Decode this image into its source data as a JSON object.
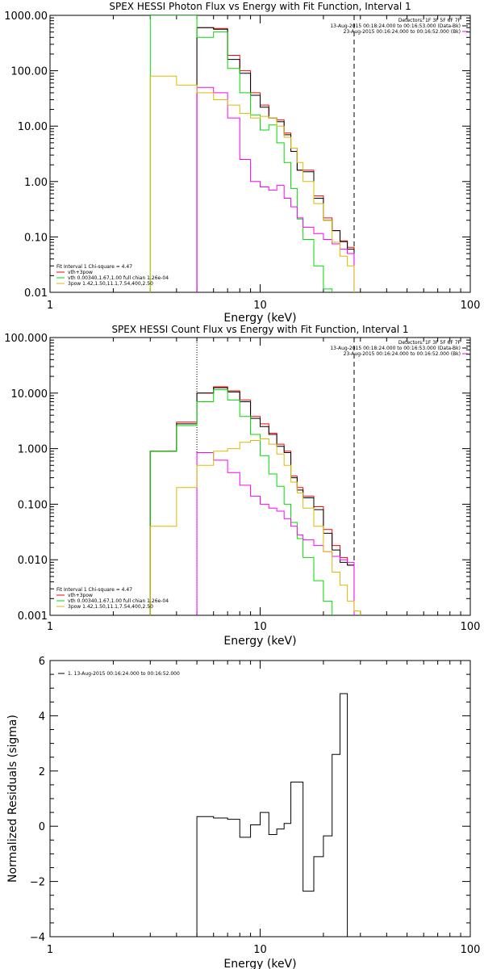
{
  "chart_data": [
    {
      "type": "line",
      "title": "SPEX HESSI Photon Flux vs Energy with Fit Function, Interval 1",
      "xlabel": "Energy (keV)",
      "ylabel": "",
      "x_scale": "log",
      "y_scale": "log",
      "xlim": [
        1,
        100
      ],
      "ylim": [
        0.01,
        1000
      ],
      "x_ticks": [
        "1",
        "10",
        "100"
      ],
      "y_ticks": [
        "0.01",
        "0.10",
        "1.00",
        "10.00",
        "100.00",
        "1000.00"
      ],
      "header_lines": [
        "Detectors: 1F 3F 5F 6F 7F",
        "13-Aug-2015 00:18:24.000 to 00:16:53.000 (Data-Bk)",
        "23-Aug-2015 00:16:24.000 to 00:16:52.000 (Bk)"
      ],
      "legend_title": "Fit Interval 1    Chi-square = 4.47",
      "legend": [
        "vth+3pow",
        "vth 0.00340,1.67,1.00  full chian 1.26e-04",
        "3pow 1.42,1.50,11.1,7.54,400,2.50"
      ],
      "vlines_dashed": [
        28
      ],
      "vlines_dotted": [],
      "edges": [
        3.0,
        4.0,
        5.0,
        6.0,
        7.0,
        8.0,
        9.0,
        10.0,
        11.0,
        12.0,
        13.0,
        14.0,
        15.0,
        16.0,
        18.0,
        20.0,
        22.0,
        24.0,
        26.0,
        28.0
      ],
      "series": [
        {
          "color": "#ff0000",
          "values": [
            null,
            null,
            600,
            580,
            190,
            100,
            40,
            24,
            14,
            13,
            7.5,
            4,
            1.6,
            1.6,
            0.55,
            0.22,
            0.13,
            0.085,
            0.065
          ]
        },
        {
          "color": "#000000",
          "values": [
            null,
            null,
            600,
            560,
            160,
            90,
            36,
            22,
            14,
            12,
            7,
            3.5,
            1.6,
            1.5,
            0.5,
            0.2,
            0.13,
            0.082,
            0.06
          ]
        },
        {
          "color": "#00dd00",
          "values": [
            1000,
            1000,
            400,
            500,
            110,
            40,
            16,
            8.5,
            10.5,
            5,
            2.2,
            0.75,
            0.21,
            0.09,
            0.03,
            0.0115,
            null,
            null,
            null
          ]
        },
        {
          "color": "#ff00ff",
          "values": [
            null,
            null,
            50,
            40,
            14,
            2.5,
            1,
            0.8,
            0.7,
            0.85,
            0.5,
            0.35,
            0.22,
            0.15,
            0.115,
            0.09,
            0.075,
            0.06,
            0.05
          ]
        },
        {
          "color": "#ddbb00",
          "values": [
            80,
            55,
            40,
            30,
            24,
            17,
            14,
            15,
            14,
            10,
            6.3,
            4,
            2.2,
            1,
            0.4,
            0.2,
            0.08,
            0.045,
            0.03
          ]
        }
      ]
    },
    {
      "type": "line",
      "title": "SPEX HESSI Count Flux vs Energy with Fit Function, Interval 1",
      "xlabel": "Energy (keV)",
      "ylabel": "",
      "x_scale": "log",
      "y_scale": "log",
      "xlim": [
        1,
        100
      ],
      "ylim": [
        0.001,
        100
      ],
      "x_ticks": [
        "1",
        "10",
        "100"
      ],
      "y_ticks": [
        "0.001",
        "0.010",
        "0.100",
        "1.000",
        "10.000",
        "100.000"
      ],
      "header_lines": [
        "Detectors: 1F 3F 5F 6F 7F",
        "13-Aug-2015 00:18:24.000 to 00:16:53.000 (Data-Bk)",
        "23-Aug-2015 00:16:24.000 to 00:16:52.000 (Bk)"
      ],
      "legend_title": "Fit Interval 1    Chi-square = 4.47",
      "legend": [
        "vth+3pow",
        "vth 0.00340,1.67,1.00  full chian 1.26e-04",
        "3pow 1.42,1.50,11.1,7.54,400,2.50"
      ],
      "vlines_dashed": [
        28
      ],
      "vlines_dotted": [
        5
      ],
      "edges": [
        3.0,
        4.0,
        5.0,
        6.0,
        7.0,
        8.0,
        9.0,
        10.0,
        11.0,
        12.0,
        13.0,
        14.0,
        15.0,
        16.0,
        18.0,
        20.0,
        22.0,
        24.0,
        26.0,
        28.0,
        30.0
      ],
      "series": [
        {
          "color": "#ff0000",
          "values": [
            0.9,
            3,
            10,
            13,
            11,
            7.5,
            3.8,
            2.8,
            1.9,
            1.2,
            0.9,
            0.32,
            0.2,
            0.14,
            0.09,
            0.035,
            0.018,
            0.011,
            0.008,
            null
          ]
        },
        {
          "color": "#000000",
          "values": [
            0.9,
            2.8,
            10,
            12.5,
            10.5,
            7,
            3.5,
            2.5,
            1.8,
            1.1,
            0.85,
            0.3,
            0.18,
            0.13,
            0.08,
            0.03,
            0.015,
            0.009,
            0.008,
            null
          ]
        },
        {
          "color": "#00dd00",
          "values": [
            0.9,
            2.6,
            7,
            11.5,
            7.5,
            3.8,
            1.8,
            0.75,
            0.35,
            0.21,
            0.1,
            0.047,
            0.024,
            0.011,
            0.0042,
            0.0018,
            null,
            null,
            null,
            null
          ]
        },
        {
          "color": "#ff00ff",
          "values": [
            null,
            null,
            0.85,
            0.62,
            0.37,
            0.22,
            0.14,
            0.1,
            0.085,
            0.075,
            0.055,
            0.04,
            0.028,
            0.023,
            0.018,
            0.014,
            0.0115,
            0.01,
            0.009,
            null
          ]
        },
        {
          "color": "#ddbb00",
          "values": [
            0.04,
            0.2,
            0.5,
            0.9,
            1.0,
            1.3,
            1.4,
            1.5,
            1.2,
            0.8,
            0.5,
            0.25,
            0.16,
            0.085,
            0.04,
            0.014,
            0.006,
            0.0035,
            0.0018,
            0.0012
          ]
        }
      ]
    },
    {
      "type": "line",
      "title": "",
      "xlabel": "Energy (keV)",
      "ylabel": "Normalized Residuals (sigma)",
      "x_scale": "log",
      "y_scale": "linear",
      "xlim": [
        1,
        100
      ],
      "ylim": [
        -4,
        6
      ],
      "x_ticks": [
        "1",
        "10",
        "100"
      ],
      "y_ticks": [
        "−4",
        "−2",
        "0",
        "2",
        "4",
        "6"
      ],
      "legend": [
        "1. 13-Aug-2015 00:16:24.000 to 00:16:52.000"
      ],
      "edges": [
        5.0,
        6.0,
        7.0,
        8.0,
        9.0,
        10.0,
        11.0,
        12.0,
        13.0,
        14.0,
        16.0,
        18.0,
        20.0,
        22.0,
        24.0,
        26.0,
        28.0
      ],
      "series": [
        {
          "color": "#000000",
          "values": [
            0.35,
            0.3,
            0.25,
            -0.4,
            0.05,
            0.5,
            -0.3,
            -0.1,
            0.1,
            1.6,
            -2.35,
            -1.1,
            -0.35,
            2.6,
            4.8,
            null
          ]
        }
      ]
    }
  ]
}
